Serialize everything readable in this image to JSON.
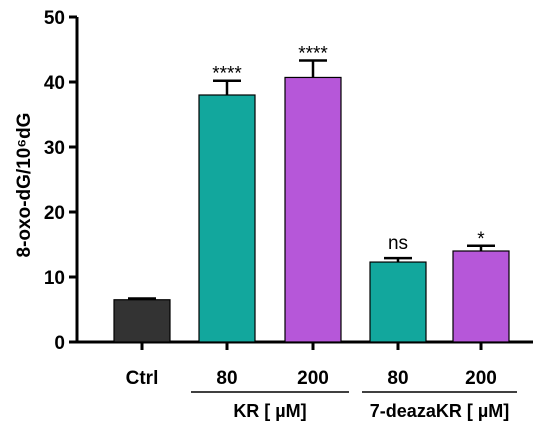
{
  "chart_data": {
    "type": "bar",
    "title": "",
    "xlabel": "",
    "ylabel": "8-oxo-dG/10⁶dG",
    "ylim": [
      0,
      50
    ],
    "yticks": [
      "0",
      "10",
      "20",
      "30",
      "40",
      "50"
    ],
    "categories": [
      "Ctrl",
      "80",
      "200",
      "80",
      "200"
    ],
    "values": [
      6.5,
      38,
      40.7,
      12.3,
      14
    ],
    "errors": [
      0.2,
      2.2,
      2.6,
      0.6,
      0.8
    ],
    "significance": [
      "",
      "****",
      "****",
      "ns",
      "*"
    ],
    "groups": [
      {
        "label": "KR [ µM]",
        "members": [
          1,
          2
        ]
      },
      {
        "label": "7-deazaKR [ µM]",
        "members": [
          3,
          4
        ]
      }
    ],
    "colors": [
      "#333333",
      "#12a79d",
      "#b657d9",
      "#12a79d",
      "#b657d9"
    ],
    "grid": false,
    "legend": "none"
  }
}
